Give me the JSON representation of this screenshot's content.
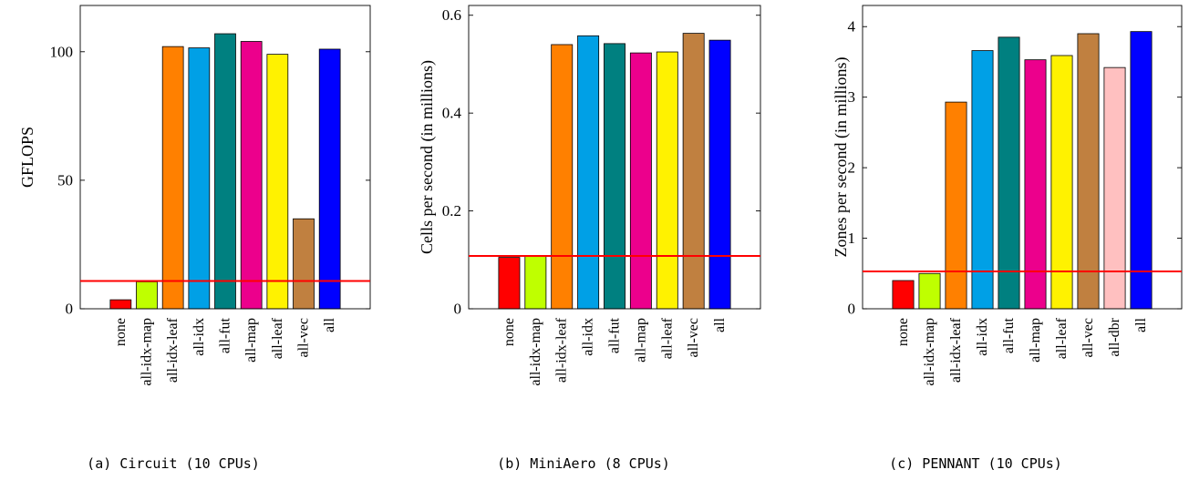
{
  "chart_data": [
    {
      "type": "bar",
      "caption": "(a) Circuit (10 CPUs)",
      "ylabel": "GFLOPS",
      "xlabel": "",
      "ylim": [
        0,
        118
      ],
      "yticks": [
        0,
        50,
        100
      ],
      "ytick_labels": [
        "0",
        "50",
        "100"
      ],
      "categories": [
        "none",
        "all-idx-map",
        "all-idx-leaf",
        "all-idx",
        "all-fut",
        "all-map",
        "all-leaf",
        "all-vec",
        "all"
      ],
      "values": [
        3.5,
        10.5,
        102,
        101.5,
        107,
        104,
        99,
        35,
        101
      ],
      "colors": [
        "#ff0000",
        "#bfff00",
        "#ff8000",
        "#00a0e6",
        "#008080",
        "#ec008c",
        "#fff200",
        "#c08040",
        "#0000ff"
      ],
      "reference_line": 10.8,
      "reference_color": "#ff0000",
      "grid": false
    },
    {
      "type": "bar",
      "caption": "(b) MiniAero (8 CPUs)",
      "ylabel": "Cells per second (in millions)",
      "xlabel": "",
      "ylim": [
        0,
        0.62
      ],
      "yticks": [
        0,
        0.2,
        0.4,
        0.6
      ],
      "ytick_labels": [
        "0",
        "0.2",
        "0.4",
        "0.6"
      ],
      "categories": [
        "none",
        "all-idx-map",
        "all-idx-leaf",
        "all-idx",
        "all-fut",
        "all-map",
        "all-leaf",
        "all-vec",
        "all"
      ],
      "values": [
        0.105,
        0.107,
        0.54,
        0.558,
        0.542,
        0.523,
        0.525,
        0.563,
        0.549
      ],
      "colors": [
        "#ff0000",
        "#bfff00",
        "#ff8000",
        "#00a0e6",
        "#008080",
        "#ec008c",
        "#fff200",
        "#c08040",
        "#0000ff"
      ],
      "reference_line": 0.108,
      "reference_color": "#ff0000",
      "grid": false
    },
    {
      "type": "bar",
      "caption": "(c) PENNANT (10 CPUs)",
      "ylabel": "Zones per second (in millions)",
      "xlabel": "",
      "ylim": [
        0,
        4.3
      ],
      "yticks": [
        0,
        1,
        2,
        3,
        4
      ],
      "ytick_labels": [
        "0",
        "1",
        "2",
        "3",
        "4"
      ],
      "categories": [
        "none",
        "all-idx-map",
        "all-idx-leaf",
        "all-idx",
        "all-fut",
        "all-map",
        "all-leaf",
        "all-vec",
        "all-dbr",
        "all"
      ],
      "values": [
        0.4,
        0.5,
        2.93,
        3.66,
        3.85,
        3.53,
        3.59,
        3.9,
        3.42,
        3.93
      ],
      "colors": [
        "#ff0000",
        "#bfff00",
        "#ff8000",
        "#00a0e6",
        "#008080",
        "#ec008c",
        "#fff200",
        "#c08040",
        "#ffc0c0",
        "#0000ff"
      ],
      "reference_line": 0.53,
      "reference_color": "#ff0000",
      "grid": false
    }
  ]
}
